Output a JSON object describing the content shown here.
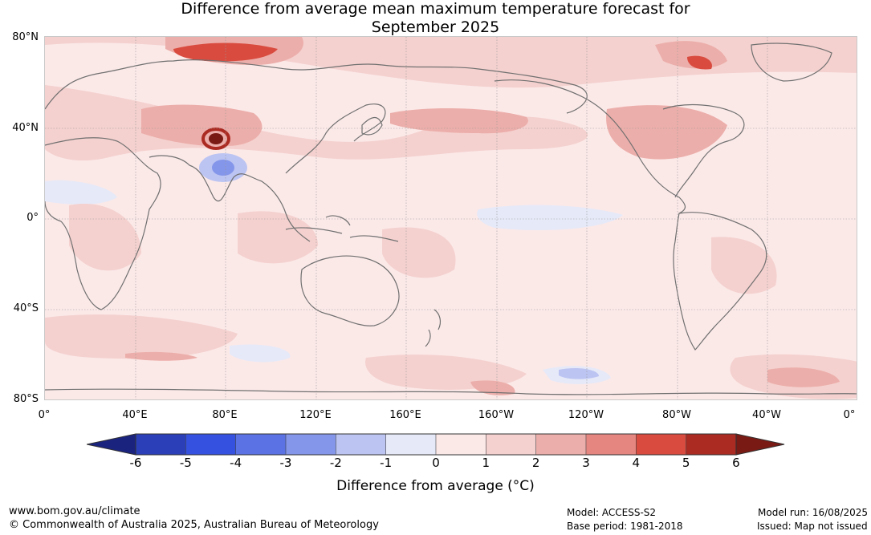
{
  "title": {
    "line1": "Difference from average mean maximum temperature forecast for",
    "line2": "September 2025"
  },
  "map": {
    "latitude_labels": [
      "80°N",
      "40°N",
      "0°",
      "40°S",
      "80°S"
    ],
    "longitude_labels": [
      "0°",
      "40°E",
      "80°E",
      "120°E",
      "160°E",
      "160°W",
      "120°W",
      "80°W",
      "40°W",
      "0°"
    ],
    "background_color": "#fbe9e8",
    "coastline_color": "#707070"
  },
  "colorbar": {
    "tick_labels": [
      "-6",
      "-5",
      "-4",
      "-3",
      "-2",
      "-1",
      "0",
      "1",
      "2",
      "3",
      "4",
      "5",
      "6"
    ],
    "colors": [
      "#1a237e",
      "#2a3fb8",
      "#3451e0",
      "#5a72e4",
      "#8496ea",
      "#bcc4f2",
      "#e6e9f8",
      "#fbe9e8",
      "#f4d1cf",
      "#ecaeaa",
      "#e58680",
      "#d94b3f",
      "#ab2a22",
      "#7a1a14"
    ],
    "label": "Difference from average (°C)"
  },
  "footer": {
    "website": "www.bom.gov.au/climate",
    "copyright": "© Commonwealth of Australia 2025, Australian Bureau of Meteorology",
    "model": "Model: ACCESS-S2",
    "base_period": "Base period: 1981-2018",
    "model_run": "Model run: 16/08/2025",
    "issued": "Issued: Map not issued"
  }
}
